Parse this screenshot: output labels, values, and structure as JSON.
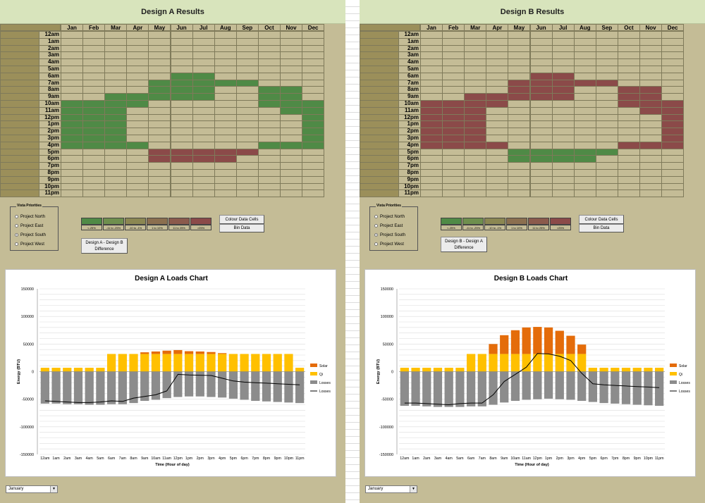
{
  "months": [
    "Jan",
    "Feb",
    "Mar",
    "Apr",
    "May",
    "Jun",
    "Jul",
    "Aug",
    "Sep",
    "Oct",
    "Nov",
    "Dec"
  ],
  "hours": [
    "12am",
    "1am",
    "2am",
    "3am",
    "4am",
    "5am",
    "6am",
    "7am",
    "8am",
    "9am",
    "10am",
    "11am",
    "12pm",
    "1pm",
    "2pm",
    "3pm",
    "4pm",
    "5pm",
    "6pm",
    "7pm",
    "8pm",
    "9pm",
    "10pm",
    "11pm"
  ],
  "colors": {
    "neutral": "#c4bc96",
    "g3": "#4f8a46",
    "g2": "#6e8f4e",
    "g1": "#8b8752",
    "r1": "#8b6f4f",
    "r2": "#8b5a4c",
    "r3": "#8b4a49",
    "solar": "#e46c0a",
    "qi": "#ffc000",
    "losses": "#8c8c8c",
    "line": "#000000"
  },
  "view_priority": {
    "legend": "Vista Priorities",
    "options": [
      "Project North",
      "Project East",
      "Project South",
      "Project West"
    ],
    "selected": "Project South"
  },
  "bins": [
    {
      "label": "<-25%",
      "color": "g3"
    },
    {
      "label": "-11 to -25%",
      "color": "g2"
    },
    {
      "label": "-10 to -1%",
      "color": "g1"
    },
    {
      "label": "1 to 10%",
      "color": "r1"
    },
    {
      "label": "11 to 25%",
      "color": "r2"
    },
    {
      "label": ">25%",
      "color": "r3"
    }
  ],
  "dropdown": {
    "value": "January"
  },
  "panels": [
    {
      "id": "a",
      "title": "Design A Results",
      "buttons": {
        "colour": "Colour Data Cells",
        "bin": "Bin Data",
        "diff": "Design A - Design B Difference"
      },
      "grid": [
        "............",
        "............",
        "............",
        "............",
        "............",
        "............",
        ".....gg.....",
        "....ggggg...",
        "....ggg..gg.",
        "..ggggg..gg.",
        "gggg.....ggg",
        "ggg.......gg",
        "ggg........g",
        "ggg........g",
        "ggg........g",
        "ggg........g",
        "gggg.....ggg",
        "....rrrrr...",
        "....rrrr....",
        "............",
        "............",
        "............",
        "............",
        "............"
      ],
      "chart_data": {
        "type": "bar",
        "title": "Design A Loads Chart",
        "xlabel": "Time (Hour of day)",
        "ylabel": "Energy (BTU)",
        "categories": [
          "12am",
          "1am",
          "2am",
          "3am",
          "4am",
          "5am",
          "6am",
          "7am",
          "8am",
          "9am",
          "10am",
          "11am",
          "12pm",
          "1pm",
          "2pm",
          "3pm",
          "4pm",
          "5pm",
          "6pm",
          "7pm",
          "8pm",
          "9pm",
          "10pm",
          "11pm"
        ],
        "ylim": [
          -150000,
          150000
        ],
        "ticks": [
          "150000",
          "100000",
          "50000",
          "0",
          "-50000",
          "-100000",
          "-150000"
        ],
        "legend_position": "right",
        "series": [
          {
            "name": "Solar",
            "type": "bar",
            "values": [
              0,
              0,
              0,
              0,
              0,
              0,
              0,
              0,
              0,
              3000,
              4500,
              6000,
              7000,
              5000,
              4500,
              3500,
              1500,
              0,
              0,
              0,
              0,
              0,
              0,
              0
            ]
          },
          {
            "name": "Qi",
            "type": "bar",
            "values": [
              7000,
              7000,
              7000,
              7000,
              7000,
              7000,
              32000,
              32000,
              32000,
              32000,
              32000,
              32000,
              32000,
              32000,
              32000,
              32000,
              32000,
              32000,
              32000,
              32000,
              32000,
              32000,
              32000,
              7000
            ]
          },
          {
            "name": "Losses",
            "type": "bar",
            "values": [
              -58000,
              -58000,
              -59000,
              -59000,
              -60000,
              -60000,
              -59000,
              -59000,
              -57000,
              -53000,
              -51000,
              -48000,
              -46000,
              -45000,
              -45000,
              -46000,
              -47000,
              -49000,
              -51000,
              -53000,
              -54000,
              -55000,
              -56000,
              -57000
            ]
          },
          {
            "name": "Losses",
            "type": "line",
            "values": [
              -53000,
              -54000,
              -55000,
              -56000,
              -56000,
              -55000,
              -53000,
              -54000,
              -48000,
              -45000,
              -42000,
              -35000,
              -5000,
              -6000,
              -6500,
              -7000,
              -12000,
              -17000,
              -19000,
              -20000,
              -21000,
              -22000,
              -23000,
              -24000
            ]
          }
        ]
      }
    },
    {
      "id": "b",
      "title": "Design B Results",
      "buttons": {
        "colour": "Colour Data Cells",
        "bin": "Bin Data",
        "diff": "Design B - Design A Difference"
      },
      "grid": [
        "............",
        "............",
        "............",
        "............",
        "............",
        "............",
        ".....rr.....",
        "....rrrrr...",
        "....rrr..rr.",
        "..rrrrr..rr.",
        "rrrr.....rrr",
        "rrr.......rr",
        "rrr........r",
        "rrr........r",
        "rrr........r",
        "rrr........r",
        "rrrr.....rrr",
        "....ggggg...",
        "....gggg....",
        "............",
        "............",
        "............",
        "............",
        "............"
      ],
      "chart_data": {
        "type": "bar",
        "title": "Design B Loads Chart",
        "xlabel": "Time (Hour of day)",
        "ylabel": "Energy (BTU)",
        "categories": [
          "12am",
          "1am",
          "2am",
          "3am",
          "4am",
          "5am",
          "6am",
          "7am",
          "8am",
          "9am",
          "10am",
          "11am",
          "12pm",
          "1pm",
          "2pm",
          "3pm",
          "4pm",
          "5pm",
          "6pm",
          "7pm",
          "8pm",
          "9pm",
          "10pm",
          "11pm"
        ],
        "ylim": [
          -150000,
          150000
        ],
        "ticks": [
          "150000",
          "100000",
          "50000",
          "0",
          "-50000",
          "-100000",
          "-150000"
        ],
        "legend_position": "right",
        "series": [
          {
            "name": "Solar",
            "type": "bar",
            "values": [
              0,
              0,
              0,
              0,
              0,
              0,
              0,
              0,
              18000,
              34000,
              43000,
              48000,
              49000,
              48000,
              42000,
              33000,
              17000,
              0,
              0,
              0,
              0,
              0,
              0,
              0
            ]
          },
          {
            "name": "Qi",
            "type": "bar",
            "values": [
              7000,
              7000,
              7000,
              7000,
              7000,
              7000,
              32000,
              32000,
              32000,
              32000,
              32000,
              32000,
              32000,
              32000,
              32000,
              32000,
              32000,
              7000,
              7000,
              7000,
              7000,
              7000,
              7000,
              7000
            ]
          },
          {
            "name": "Losses",
            "type": "bar",
            "values": [
              -62000,
              -62000,
              -63000,
              -64000,
              -64000,
              -64000,
              -63000,
              -63000,
              -60000,
              -56000,
              -53000,
              -51000,
              -50000,
              -49000,
              -50000,
              -51000,
              -53000,
              -55000,
              -57000,
              -58000,
              -59000,
              -60000,
              -61000,
              -62000
            ]
          },
          {
            "name": "Losses",
            "type": "line",
            "values": [
              -57000,
              -57000,
              -58000,
              -59000,
              -60000,
              -58000,
              -57000,
              -57000,
              -42000,
              -18000,
              -5000,
              8000,
              33000,
              32000,
              28000,
              20000,
              -3000,
              -22000,
              -24000,
              -25000,
              -26000,
              -27000,
              -28000,
              -29000
            ]
          }
        ]
      }
    }
  ]
}
